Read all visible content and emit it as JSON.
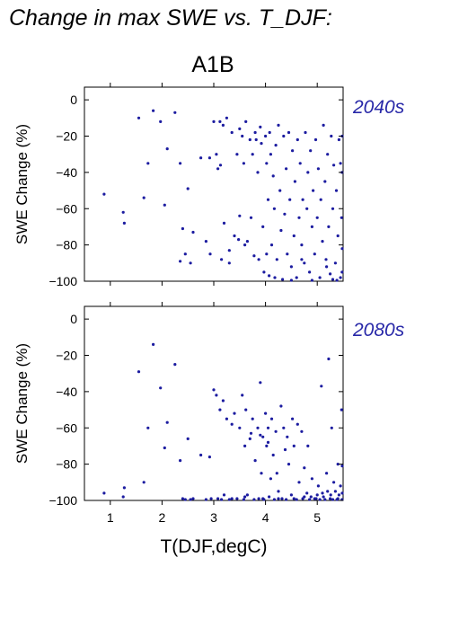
{
  "figure": {
    "title": "Change in max SWE vs. T_DJF:",
    "scenario": "A1B",
    "xlabel": "T(DJF,degC)",
    "ylabel": "SWE Change (%)"
  },
  "colors": {
    "points": "#1c1ca0",
    "period_label": "#2828a8",
    "axes": "#000000"
  },
  "chart_data": [
    {
      "type": "scatter",
      "period": "2040s",
      "xlabel": "T(DJF,degC)",
      "ylabel": "SWE Change (%)",
      "xlim": [
        0.5,
        5.5
      ],
      "ylim": [
        -100,
        7
      ],
      "x_ticks": [
        1,
        2,
        3,
        4,
        5
      ],
      "x_tick_labels": [],
      "y_ticks": [
        0,
        -20,
        -40,
        -60,
        -80,
        -100
      ],
      "y_tick_labels": [
        "0",
        "−20",
        "−40",
        "−60",
        "−80",
        "−100"
      ],
      "grid": false,
      "points": [
        [
          0.88,
          -52
        ],
        [
          1.25,
          -62
        ],
        [
          1.27,
          -68
        ],
        [
          1.55,
          -10
        ],
        [
          1.65,
          -54
        ],
        [
          1.73,
          -35
        ],
        [
          1.83,
          -6
        ],
        [
          1.97,
          -12
        ],
        [
          2.05,
          -58
        ],
        [
          2.1,
          -27
        ],
        [
          2.25,
          -7
        ],
        [
          2.35,
          -35
        ],
        [
          2.4,
          -71
        ],
        [
          2.35,
          -89
        ],
        [
          2.45,
          -85
        ],
        [
          2.5,
          -49
        ],
        [
          2.55,
          -90
        ],
        [
          2.6,
          -73
        ],
        [
          2.75,
          -32
        ],
        [
          2.85,
          -78
        ],
        [
          2.92,
          -32
        ],
        [
          2.93,
          -85
        ],
        [
          3.0,
          -12
        ],
        [
          3.05,
          -30
        ],
        [
          3.08,
          -38
        ],
        [
          3.12,
          -12
        ],
        [
          3.13,
          -36
        ],
        [
          3.15,
          -88
        ],
        [
          3.18,
          -14
        ],
        [
          3.2,
          -68
        ],
        [
          3.25,
          -10
        ],
        [
          3.3,
          -90
        ],
        [
          3.35,
          -18
        ],
        [
          3.4,
          -75
        ],
        [
          3.45,
          -30
        ],
        [
          3.48,
          -77
        ],
        [
          3.5,
          -16
        ],
        [
          3.5,
          -64
        ],
        [
          3.55,
          -20
        ],
        [
          3.58,
          -35
        ],
        [
          3.6,
          -80
        ],
        [
          3.62,
          -12
        ],
        [
          3.65,
          -78
        ],
        [
          3.7,
          -22
        ],
        [
          3.72,
          -65
        ],
        [
          3.75,
          -30
        ],
        [
          3.78,
          -86
        ],
        [
          3.8,
          -18
        ],
        [
          3.82,
          -22
        ],
        [
          3.85,
          -40
        ],
        [
          3.87,
          -88
        ],
        [
          3.9,
          -15
        ],
        [
          3.92,
          -24
        ],
        [
          3.95,
          -70
        ],
        [
          3.97,
          -95
        ],
        [
          4.0,
          -20
        ],
        [
          4.02,
          -35
        ],
        [
          4.05,
          -55
        ],
        [
          4.07,
          -97
        ],
        [
          4.08,
          -18
        ],
        [
          4.1,
          -30
        ],
        [
          4.12,
          -80
        ],
        [
          4.15,
          -42
        ],
        [
          4.17,
          -60
        ],
        [
          4.2,
          -25
        ],
        [
          4.22,
          -88
        ],
        [
          4.25,
          -14
        ],
        [
          4.28,
          -50
        ],
        [
          4.3,
          -72
        ],
        [
          4.33,
          -99
        ],
        [
          4.35,
          -20
        ],
        [
          4.37,
          -63
        ],
        [
          4.4,
          -38
        ],
        [
          4.42,
          -85
        ],
        [
          4.45,
          -18
        ],
        [
          4.47,
          -55
        ],
        [
          4.5,
          -92
        ],
        [
          4.52,
          -28
        ],
        [
          4.55,
          -75
        ],
        [
          4.57,
          -45
        ],
        [
          4.6,
          -98
        ],
        [
          4.62,
          -22
        ],
        [
          4.65,
          -65
        ],
        [
          4.67,
          -35
        ],
        [
          4.7,
          -80
        ],
        [
          4.72,
          -55
        ],
        [
          4.75,
          -90
        ],
        [
          4.77,
          -18
        ],
        [
          4.8,
          -60
        ],
        [
          4.82,
          -40
        ],
        [
          4.85,
          -95
        ],
        [
          4.87,
          -28
        ],
        [
          4.9,
          -70
        ],
        [
          4.92,
          -50
        ],
        [
          4.95,
          -85
        ],
        [
          4.97,
          -22
        ],
        [
          5.0,
          -65
        ],
        [
          5.02,
          -38
        ],
        [
          5.05,
          -98
        ],
        [
          5.07,
          -55
        ],
        [
          5.1,
          -78
        ],
        [
          5.12,
          -14
        ],
        [
          5.15,
          -45
        ],
        [
          5.17,
          -88
        ],
        [
          5.2,
          -30
        ],
        [
          5.22,
          -70
        ],
        [
          5.25,
          -96
        ],
        [
          5.27,
          -20
        ],
        [
          5.3,
          -60
        ],
        [
          5.32,
          -36
        ],
        [
          5.35,
          -90
        ],
        [
          5.37,
          -50
        ],
        [
          5.4,
          -75
        ],
        [
          5.42,
          -22
        ],
        [
          5.45,
          -98
        ],
        [
          5.47,
          -65
        ],
        [
          5.48,
          -40
        ],
        [
          5.5,
          -82
        ],
        [
          5.5,
          -20
        ],
        [
          5.45,
          -35
        ],
        [
          5.38,
          -100
        ],
        [
          4.18,
          -98
        ],
        [
          4.5,
          -100
        ],
        [
          4.9,
          -100
        ],
        [
          5.3,
          -99
        ],
        [
          5.48,
          -95
        ],
        [
          3.3,
          -83
        ],
        [
          4.02,
          -85
        ],
        [
          4.7,
          -88
        ],
        [
          5.18,
          -92
        ]
      ]
    },
    {
      "type": "scatter",
      "period": "2080s",
      "xlabel": "T(DJF,degC)",
      "ylabel": "SWE Change (%)",
      "xlim": [
        0.5,
        5.5
      ],
      "ylim": [
        -100,
        7
      ],
      "x_ticks": [
        1,
        2,
        3,
        4,
        5
      ],
      "x_tick_labels": [
        "1",
        "2",
        "3",
        "4",
        "5"
      ],
      "y_ticks": [
        0,
        -20,
        -40,
        -60,
        -80,
        -100
      ],
      "y_tick_labels": [
        "0",
        "−20",
        "−40",
        "−60",
        "−80",
        "−100"
      ],
      "grid": false,
      "points": [
        [
          0.88,
          -96
        ],
        [
          1.25,
          -98
        ],
        [
          1.27,
          -93
        ],
        [
          1.55,
          -29
        ],
        [
          1.65,
          -90
        ],
        [
          1.73,
          -60
        ],
        [
          1.83,
          -14
        ],
        [
          1.97,
          -38
        ],
        [
          2.05,
          -71
        ],
        [
          2.1,
          -57
        ],
        [
          2.25,
          -25
        ],
        [
          2.35,
          -78
        ],
        [
          2.4,
          -99
        ],
        [
          2.45,
          -100
        ],
        [
          2.5,
          -66
        ],
        [
          2.55,
          -100
        ],
        [
          2.6,
          -99
        ],
        [
          2.75,
          -75
        ],
        [
          2.85,
          -100
        ],
        [
          2.92,
          -76
        ],
        [
          2.95,
          -99
        ],
        [
          3.0,
          -39
        ],
        [
          3.05,
          -42
        ],
        [
          3.08,
          -99
        ],
        [
          3.12,
          -50
        ],
        [
          3.15,
          -100
        ],
        [
          3.18,
          -45
        ],
        [
          3.2,
          -97
        ],
        [
          3.25,
          -55
        ],
        [
          3.3,
          -100
        ],
        [
          3.35,
          -58
        ],
        [
          3.4,
          -52
        ],
        [
          3.45,
          -99
        ],
        [
          3.5,
          -60
        ],
        [
          3.55,
          -42
        ],
        [
          3.58,
          -100
        ],
        [
          3.6,
          -70
        ],
        [
          3.62,
          -50
        ],
        [
          3.65,
          -97
        ],
        [
          3.7,
          -66
        ],
        [
          3.75,
          -55
        ],
        [
          3.78,
          -100
        ],
        [
          3.8,
          -78
        ],
        [
          3.85,
          -60
        ],
        [
          3.87,
          -99
        ],
        [
          3.9,
          -35
        ],
        [
          3.92,
          -85
        ],
        [
          3.95,
          -65
        ],
        [
          3.97,
          -100
        ],
        [
          4.0,
          -52
        ],
        [
          4.02,
          -70
        ],
        [
          4.05,
          -60
        ],
        [
          4.07,
          -98
        ],
        [
          4.1,
          -88
        ],
        [
          4.12,
          -55
        ],
        [
          4.15,
          -75
        ],
        [
          4.17,
          -100
        ],
        [
          4.2,
          -62
        ],
        [
          4.22,
          -85
        ],
        [
          4.25,
          -95
        ],
        [
          4.3,
          -48
        ],
        [
          4.32,
          -99
        ],
        [
          4.35,
          -60
        ],
        [
          4.4,
          -100
        ],
        [
          4.42,
          -65
        ],
        [
          4.45,
          -80
        ],
        [
          4.5,
          -97
        ],
        [
          4.52,
          -55
        ],
        [
          4.55,
          -70
        ],
        [
          4.6,
          -100
        ],
        [
          4.62,
          -58
        ],
        [
          4.65,
          -90
        ],
        [
          4.7,
          -62
        ],
        [
          4.72,
          -99
        ],
        [
          4.75,
          -82
        ],
        [
          4.8,
          -96
        ],
        [
          4.82,
          -70
        ],
        [
          4.85,
          -100
        ],
        [
          4.9,
          -88
        ],
        [
          4.95,
          -99
        ],
        [
          5.0,
          -97
        ],
        [
          5.02,
          -92
        ],
        [
          5.05,
          -100
        ],
        [
          5.08,
          -37
        ],
        [
          5.1,
          -96
        ],
        [
          5.15,
          -100
        ],
        [
          5.18,
          -85
        ],
        [
          5.2,
          -95
        ],
        [
          5.22,
          -22
        ],
        [
          5.25,
          -99
        ],
        [
          5.28,
          -60
        ],
        [
          5.3,
          -100
        ],
        [
          5.32,
          -90
        ],
        [
          5.35,
          -95
        ],
        [
          5.38,
          -100
        ],
        [
          5.4,
          -80
        ],
        [
          5.42,
          -97
        ],
        [
          5.45,
          -92
        ],
        [
          5.47,
          -50
        ],
        [
          5.48,
          -100
        ],
        [
          5.5,
          -81
        ],
        [
          5.5,
          -96
        ],
        [
          3.9,
          -64
        ],
        [
          4.05,
          -68
        ],
        [
          3.72,
          -63
        ],
        [
          4.38,
          -72
        ],
        [
          4.75,
          -98
        ],
        [
          4.98,
          -99
        ],
        [
          5.12,
          -98
        ],
        [
          4.55,
          -99
        ],
        [
          4.25,
          -99
        ],
        [
          3.95,
          -99
        ],
        [
          3.6,
          -98
        ],
        [
          3.35,
          -99
        ],
        [
          5.4,
          -99
        ],
        [
          5.26,
          -97
        ],
        [
          4.88,
          -98
        ]
      ]
    }
  ]
}
